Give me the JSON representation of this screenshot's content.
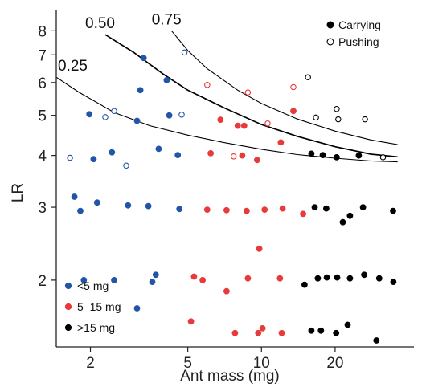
{
  "chart_data": {
    "type": "scatter",
    "xlabel": "Ant mass (mg)",
    "ylabel": "LR",
    "xscale": "log",
    "yscale": "log",
    "xlim": [
      1.45,
      42
    ],
    "ylim": [
      1.38,
      9.0
    ],
    "x_ticks": [
      {
        "v": 2,
        "label": "2"
      },
      {
        "v": 5,
        "label": "5"
      },
      {
        "v": 10,
        "label": "10"
      },
      {
        "v": 20,
        "label": "20"
      }
    ],
    "y_ticks": [
      {
        "v": 2,
        "label": "2"
      },
      {
        "v": 3,
        "label": "3"
      },
      {
        "v": 4,
        "label": "4"
      },
      {
        "v": 5,
        "label": "5"
      },
      {
        "v": 6,
        "label": "6"
      },
      {
        "v": 7,
        "label": "7"
      },
      {
        "v": 8,
        "label": "8"
      }
    ],
    "grid": false,
    "colors": {
      "small": "#2255aa",
      "medium": "#e83a3a",
      "large": "#000000",
      "curve": "#000000",
      "axis": "#222222"
    },
    "mass_legend": {
      "placement": "bottom-left",
      "entries": [
        {
          "key": "small",
          "label": "<5 mg"
        },
        {
          "key": "medium",
          "label": "5–15 mg"
        },
        {
          "key": "large",
          "label": ">15 mg"
        }
      ]
    },
    "behavior_legend": {
      "placement": "top-right",
      "entries": [
        {
          "fill": "filled",
          "label": "Carrying"
        },
        {
          "fill": "open",
          "label": "Pushing"
        }
      ]
    },
    "curves": [
      {
        "label": "0.25",
        "points": [
          [
            1.45,
            6.18
          ],
          [
            1.8,
            5.68
          ],
          [
            2.5,
            5.08
          ],
          [
            3.5,
            4.72
          ],
          [
            5,
            4.48
          ],
          [
            7,
            4.3
          ],
          [
            10,
            4.14
          ],
          [
            14,
            4.02
          ],
          [
            20,
            3.94
          ],
          [
            28,
            3.88
          ],
          [
            36,
            3.86
          ]
        ]
      },
      {
        "label": "0.50",
        "points": [
          [
            2.3,
            7.83
          ],
          [
            3,
            7.1
          ],
          [
            4,
            6.27
          ],
          [
            5,
            5.75
          ],
          [
            7,
            5.22
          ],
          [
            10,
            4.75
          ],
          [
            14,
            4.45
          ],
          [
            20,
            4.2
          ],
          [
            28,
            4.03
          ],
          [
            36,
            3.97
          ]
        ]
      },
      {
        "label": "0.75",
        "points": [
          [
            4.3,
            7.99
          ],
          [
            5,
            7.17
          ],
          [
            6,
            6.48
          ],
          [
            8,
            5.75
          ],
          [
            10,
            5.34
          ],
          [
            14,
            4.9
          ],
          [
            20,
            4.58
          ],
          [
            28,
            4.36
          ],
          [
            36,
            4.25
          ]
        ]
      }
    ],
    "points": [
      {
        "x": 1.72,
        "y": 3.18,
        "size": "small",
        "fill": "filled"
      },
      {
        "x": 1.82,
        "y": 2.94,
        "size": "small",
        "fill": "filled"
      },
      {
        "x": 2.13,
        "y": 3.08,
        "size": "small",
        "fill": "filled"
      },
      {
        "x": 2.06,
        "y": 3.92,
        "size": "small",
        "fill": "filled"
      },
      {
        "x": 1.98,
        "y": 5.03,
        "size": "small",
        "fill": "filled"
      },
      {
        "x": 2.45,
        "y": 4.07,
        "size": "small",
        "fill": "filled"
      },
      {
        "x": 2.85,
        "y": 3.03,
        "size": "small",
        "fill": "filled"
      },
      {
        "x": 3.1,
        "y": 4.85,
        "size": "small",
        "fill": "filled"
      },
      {
        "x": 3.2,
        "y": 5.75,
        "size": "small",
        "fill": "filled"
      },
      {
        "x": 3.3,
        "y": 6.88,
        "size": "small",
        "fill": "filled"
      },
      {
        "x": 3.45,
        "y": 3.02,
        "size": "small",
        "fill": "filled"
      },
      {
        "x": 3.8,
        "y": 4.15,
        "size": "small",
        "fill": "filled"
      },
      {
        "x": 4.1,
        "y": 6.08,
        "size": "small",
        "fill": "filled"
      },
      {
        "x": 4.2,
        "y": 5.0,
        "size": "small",
        "fill": "filled"
      },
      {
        "x": 4.55,
        "y": 4.01,
        "size": "small",
        "fill": "filled"
      },
      {
        "x": 4.62,
        "y": 2.97,
        "size": "small",
        "fill": "filled"
      },
      {
        "x": 1.88,
        "y": 2.0,
        "size": "small",
        "fill": "filled"
      },
      {
        "x": 2.5,
        "y": 2.0,
        "size": "small",
        "fill": "filled"
      },
      {
        "x": 3.58,
        "y": 1.98,
        "size": "small",
        "fill": "filled"
      },
      {
        "x": 3.7,
        "y": 2.06,
        "size": "small",
        "fill": "filled"
      },
      {
        "x": 3.1,
        "y": 1.71,
        "size": "small",
        "fill": "filled"
      },
      {
        "x": 1.65,
        "y": 3.95,
        "size": "small",
        "fill": "open"
      },
      {
        "x": 2.3,
        "y": 4.95,
        "size": "small",
        "fill": "open"
      },
      {
        "x": 2.5,
        "y": 5.12,
        "size": "small",
        "fill": "open"
      },
      {
        "x": 2.8,
        "y": 3.78,
        "size": "small",
        "fill": "open"
      },
      {
        "x": 4.72,
        "y": 5.02,
        "size": "small",
        "fill": "open"
      },
      {
        "x": 4.85,
        "y": 7.09,
        "size": "small",
        "fill": "open"
      },
      {
        "x": 6.2,
        "y": 4.05,
        "size": "medium",
        "fill": "filled"
      },
      {
        "x": 6.8,
        "y": 4.88,
        "size": "medium",
        "fill": "filled"
      },
      {
        "x": 8.0,
        "y": 4.72,
        "size": "medium",
        "fill": "filled"
      },
      {
        "x": 8.5,
        "y": 4.72,
        "size": "medium",
        "fill": "filled"
      },
      {
        "x": 8.35,
        "y": 4.0,
        "size": "medium",
        "fill": "filled"
      },
      {
        "x": 9.6,
        "y": 3.9,
        "size": "medium",
        "fill": "filled"
      },
      {
        "x": 12.0,
        "y": 4.3,
        "size": "medium",
        "fill": "filled"
      },
      {
        "x": 13.5,
        "y": 5.12,
        "size": "medium",
        "fill": "filled"
      },
      {
        "x": 6.0,
        "y": 2.96,
        "size": "medium",
        "fill": "filled"
      },
      {
        "x": 7.2,
        "y": 2.95,
        "size": "medium",
        "fill": "filled"
      },
      {
        "x": 8.7,
        "y": 2.94,
        "size": "medium",
        "fill": "filled"
      },
      {
        "x": 10.3,
        "y": 2.96,
        "size": "medium",
        "fill": "filled"
      },
      {
        "x": 12.2,
        "y": 2.98,
        "size": "medium",
        "fill": "filled"
      },
      {
        "x": 14.8,
        "y": 2.89,
        "size": "medium",
        "fill": "filled"
      },
      {
        "x": 9.8,
        "y": 2.38,
        "size": "medium",
        "fill": "filled"
      },
      {
        "x": 5.3,
        "y": 2.04,
        "size": "medium",
        "fill": "filled"
      },
      {
        "x": 5.75,
        "y": 2.0,
        "size": "medium",
        "fill": "filled"
      },
      {
        "x": 8.8,
        "y": 2.02,
        "size": "medium",
        "fill": "filled"
      },
      {
        "x": 11.9,
        "y": 2.02,
        "size": "medium",
        "fill": "filled"
      },
      {
        "x": 7.2,
        "y": 1.88,
        "size": "medium",
        "fill": "filled"
      },
      {
        "x": 5.15,
        "y": 1.59,
        "size": "medium",
        "fill": "filled"
      },
      {
        "x": 7.8,
        "y": 1.49,
        "size": "medium",
        "fill": "filled"
      },
      {
        "x": 9.7,
        "y": 1.49,
        "size": "medium",
        "fill": "filled"
      },
      {
        "x": 10.1,
        "y": 1.53,
        "size": "medium",
        "fill": "filled"
      },
      {
        "x": 12.1,
        "y": 1.49,
        "size": "medium",
        "fill": "filled"
      },
      {
        "x": 6.0,
        "y": 5.92,
        "size": "medium",
        "fill": "open"
      },
      {
        "x": 7.7,
        "y": 3.98,
        "size": "medium",
        "fill": "open"
      },
      {
        "x": 8.8,
        "y": 5.68,
        "size": "medium",
        "fill": "open"
      },
      {
        "x": 10.6,
        "y": 4.78,
        "size": "medium",
        "fill": "open"
      },
      {
        "x": 13.5,
        "y": 5.85,
        "size": "medium",
        "fill": "open"
      },
      {
        "x": 16.0,
        "y": 4.04,
        "size": "large",
        "fill": "filled"
      },
      {
        "x": 17.8,
        "y": 4.01,
        "size": "large",
        "fill": "filled"
      },
      {
        "x": 20.3,
        "y": 3.96,
        "size": "large",
        "fill": "filled"
      },
      {
        "x": 25.0,
        "y": 4.0,
        "size": "large",
        "fill": "filled"
      },
      {
        "x": 16.5,
        "y": 3.0,
        "size": "large",
        "fill": "filled"
      },
      {
        "x": 18.4,
        "y": 2.98,
        "size": "large",
        "fill": "filled"
      },
      {
        "x": 21.5,
        "y": 2.76,
        "size": "large",
        "fill": "filled"
      },
      {
        "x": 23.0,
        "y": 2.86,
        "size": "large",
        "fill": "filled"
      },
      {
        "x": 26.0,
        "y": 3.0,
        "size": "large",
        "fill": "filled"
      },
      {
        "x": 34.5,
        "y": 2.94,
        "size": "large",
        "fill": "filled"
      },
      {
        "x": 15.0,
        "y": 1.95,
        "size": "large",
        "fill": "filled"
      },
      {
        "x": 17.0,
        "y": 2.02,
        "size": "large",
        "fill": "filled"
      },
      {
        "x": 18.5,
        "y": 2.03,
        "size": "large",
        "fill": "filled"
      },
      {
        "x": 20.4,
        "y": 2.03,
        "size": "large",
        "fill": "filled"
      },
      {
        "x": 23.0,
        "y": 2.02,
        "size": "large",
        "fill": "filled"
      },
      {
        "x": 26.3,
        "y": 2.06,
        "size": "large",
        "fill": "filled"
      },
      {
        "x": 30.3,
        "y": 2.02,
        "size": "large",
        "fill": "filled"
      },
      {
        "x": 34.6,
        "y": 1.98,
        "size": "large",
        "fill": "filled"
      },
      {
        "x": 16.0,
        "y": 1.51,
        "size": "large",
        "fill": "filled"
      },
      {
        "x": 17.5,
        "y": 1.51,
        "size": "large",
        "fill": "filled"
      },
      {
        "x": 20.2,
        "y": 1.49,
        "size": "large",
        "fill": "filled"
      },
      {
        "x": 22.5,
        "y": 1.56,
        "size": "large",
        "fill": "filled"
      },
      {
        "x": 29.5,
        "y": 1.43,
        "size": "large",
        "fill": "filled"
      },
      {
        "x": 15.5,
        "y": 6.18,
        "size": "large",
        "fill": "open"
      },
      {
        "x": 16.7,
        "y": 4.94,
        "size": "large",
        "fill": "open"
      },
      {
        "x": 20.3,
        "y": 5.18,
        "size": "large",
        "fill": "open"
      },
      {
        "x": 20.6,
        "y": 4.89,
        "size": "large",
        "fill": "open"
      },
      {
        "x": 26.5,
        "y": 4.89,
        "size": "large",
        "fill": "open"
      },
      {
        "x": 31.4,
        "y": 3.96,
        "size": "large",
        "fill": "open"
      }
    ]
  }
}
